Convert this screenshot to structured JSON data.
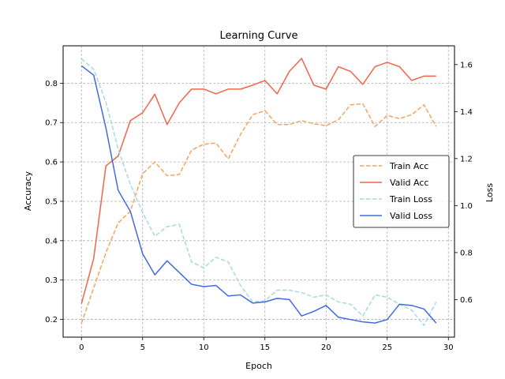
{
  "chart_data": {
    "type": "line",
    "title": "Learning Curve",
    "xlabel": "Epoch",
    "ylabel_left": "Accuracy",
    "ylabel_right": "Loss",
    "xlim": [
      -1.5,
      30.5
    ],
    "ylim_left": [
      0.155,
      0.895
    ],
    "ylim_right": [
      0.44,
      1.68
    ],
    "xticks": [
      0,
      5,
      10,
      15,
      20,
      25,
      30
    ],
    "yticks_left": [
      0.2,
      0.3,
      0.4,
      0.5,
      0.6,
      0.7,
      0.8
    ],
    "yticks_right": [
      0.6,
      0.8,
      1.0,
      1.2,
      1.4,
      1.6
    ],
    "grid": true,
    "legend_position": "center-right",
    "x": [
      0,
      1,
      2,
      3,
      4,
      5,
      6,
      7,
      8,
      9,
      10,
      11,
      12,
      13,
      14,
      15,
      16,
      17,
      18,
      19,
      20,
      21,
      22,
      23,
      24,
      25,
      26,
      27,
      28,
      29
    ],
    "series": [
      {
        "name": "Train Acc",
        "axis": "left",
        "style": "dashed",
        "color": "#f4a460",
        "values": [
          0.19,
          0.28,
          0.37,
          0.445,
          0.475,
          0.57,
          0.6,
          0.565,
          0.568,
          0.63,
          0.645,
          0.648,
          0.608,
          0.67,
          0.72,
          0.73,
          0.695,
          0.695,
          0.705,
          0.697,
          0.692,
          0.707,
          0.745,
          0.748,
          0.69,
          0.718,
          0.71,
          0.72,
          0.745,
          0.69
        ]
      },
      {
        "name": "Valid Acc",
        "axis": "left",
        "style": "solid",
        "color": "#f26449",
        "values": [
          0.24,
          0.355,
          0.59,
          0.615,
          0.705,
          0.725,
          0.772,
          0.695,
          0.75,
          0.785,
          0.785,
          0.773,
          0.785,
          0.785,
          0.795,
          0.807,
          0.773,
          0.83,
          0.863,
          0.795,
          0.785,
          0.842,
          0.83,
          0.797,
          0.842,
          0.853,
          0.842,
          0.807,
          0.818,
          0.818
        ]
      },
      {
        "name": "Train Loss",
        "axis": "right",
        "style": "dashed",
        "color": "#a8dadc",
        "values": [
          1.625,
          1.58,
          1.44,
          1.24,
          1.09,
          0.97,
          0.87,
          0.91,
          0.92,
          0.76,
          0.735,
          0.78,
          0.76,
          0.66,
          0.59,
          0.595,
          0.64,
          0.64,
          0.63,
          0.61,
          0.62,
          0.59,
          0.58,
          0.53,
          0.62,
          0.61,
          0.58,
          0.555,
          0.49,
          0.59
        ]
      },
      {
        "name": "Valid Loss",
        "axis": "right",
        "style": "solid",
        "color": "#4169e1",
        "values": [
          1.595,
          1.555,
          1.33,
          1.065,
          0.975,
          0.795,
          0.705,
          0.765,
          0.715,
          0.665,
          0.655,
          0.66,
          0.615,
          0.62,
          0.585,
          0.59,
          0.605,
          0.6,
          0.53,
          0.55,
          0.575,
          0.525,
          0.515,
          0.505,
          0.5,
          0.515,
          0.58,
          0.575,
          0.56,
          0.5
        ]
      }
    ]
  }
}
